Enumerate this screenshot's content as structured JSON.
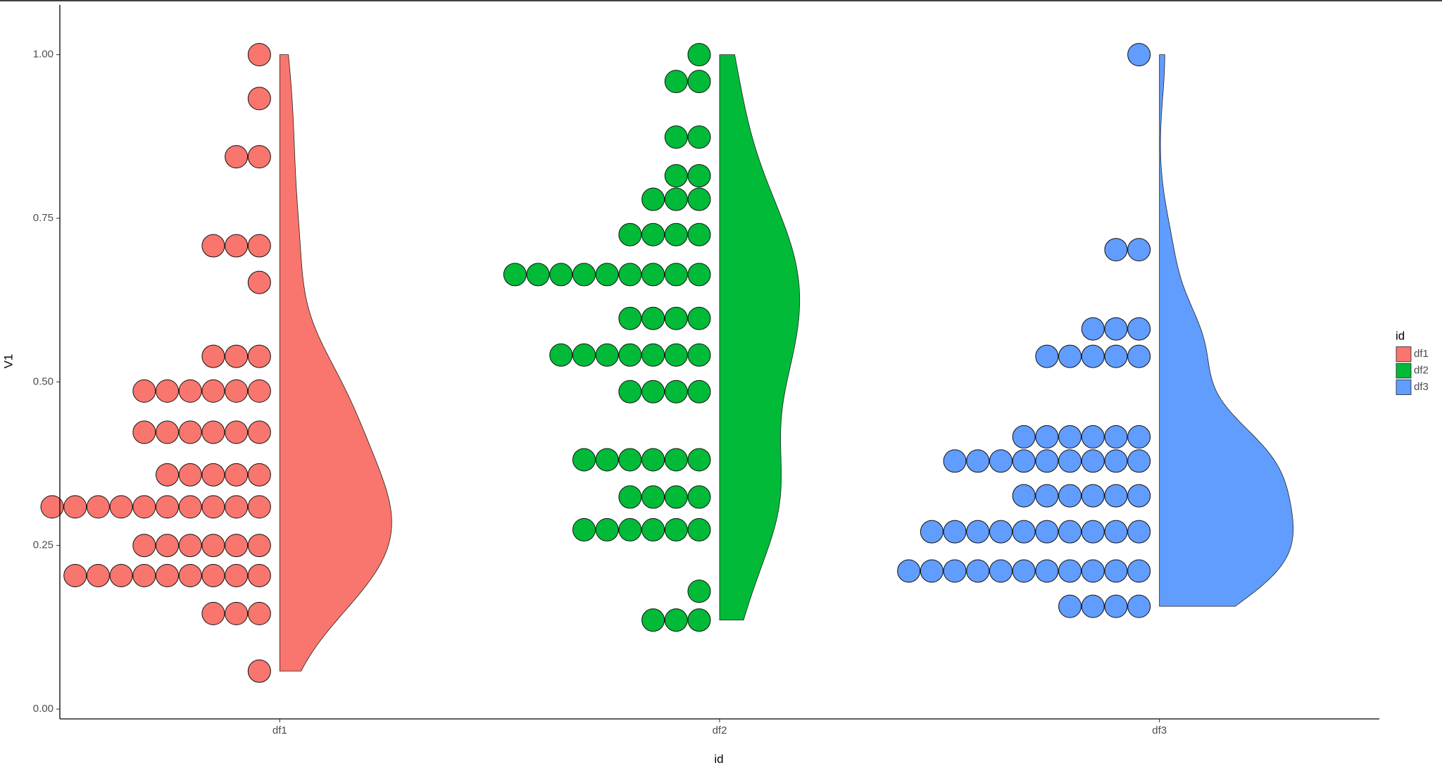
{
  "chart_data": {
    "type": "violin-dotplot",
    "x_label": "id",
    "y_label": "V1",
    "legend_title": "id",
    "categories": [
      "df1",
      "df2",
      "df3"
    ],
    "ylim": [
      -0.015,
      1.076
    ],
    "yticks": [
      {
        "value": 0,
        "label": "0.00"
      },
      {
        "value": 0.25,
        "label": "0.25"
      },
      {
        "value": 0.5,
        "label": "0.50"
      },
      {
        "value": 0.75,
        "label": "0.75"
      },
      {
        "value": 1,
        "label": "1.00"
      }
    ],
    "series": [
      {
        "name": "df1",
        "color": "#F8766D",
        "dot_y": [
          1.0,
          0.933,
          0.844,
          0.708,
          0.652,
          0.539,
          0.486,
          0.423,
          0.358,
          0.309,
          0.25,
          0.204,
          0.146,
          0.058
        ],
        "dot_count": [
          1,
          1,
          2,
          3,
          1,
          3,
          6,
          6,
          5,
          10,
          6,
          9,
          3,
          1
        ]
      },
      {
        "name": "df2",
        "color": "#00BA38",
        "dot_y": [
          1.0,
          0.959,
          0.874,
          0.815,
          0.779,
          0.725,
          0.664,
          0.597,
          0.541,
          0.485,
          0.381,
          0.324,
          0.274,
          0.18,
          0.136
        ],
        "dot_count": [
          1,
          2,
          2,
          2,
          3,
          4,
          9,
          4,
          7,
          4,
          6,
          4,
          6,
          1,
          3
        ]
      },
      {
        "name": "df3",
        "color": "#619CFF",
        "dot_y": [
          1.0,
          0.702,
          0.581,
          0.539,
          0.416,
          0.379,
          0.326,
          0.271,
          0.211,
          0.157
        ],
        "dot_count": [
          1,
          2,
          3,
          5,
          6,
          9,
          6,
          10,
          11,
          4
        ]
      }
    ]
  }
}
